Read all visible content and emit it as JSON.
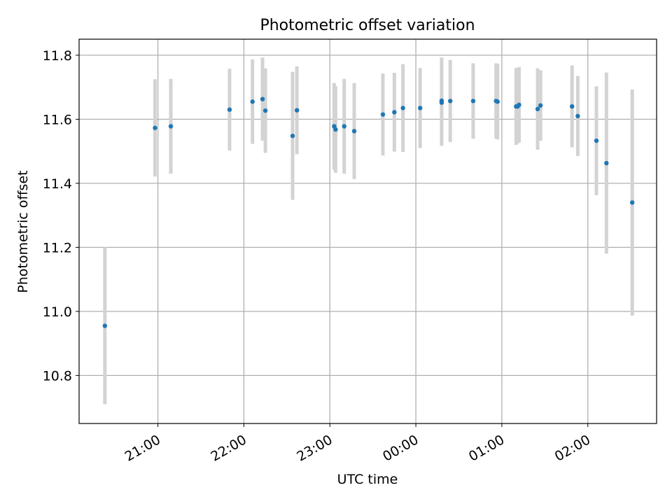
{
  "chart_data": {
    "type": "scatter",
    "title": "Photometric offset variation",
    "xlabel": "UTC time",
    "ylabel": "Photometric offset",
    "grid": true,
    "xlim": [
      "20:05",
      "02:48"
    ],
    "ylim": [
      10.65,
      11.85
    ],
    "x_ticks": [
      "21:00",
      "22:00",
      "23:00",
      "00:00",
      "01:00",
      "02:00"
    ],
    "y_ticks": [
      "10.8",
      "11.0",
      "11.2",
      "11.4",
      "11.6",
      "11.8"
    ],
    "colors": {
      "point": "#1f77b4",
      "errorbar": "#d3d3d3",
      "grid": "#b0b0b0"
    },
    "points": [
      {
        "x": "20:23",
        "y": 10.955,
        "err": 0.245
      },
      {
        "x": "20:58",
        "y": 11.573,
        "err": 0.152
      },
      {
        "x": "21:09",
        "y": 11.578,
        "err": 0.148
      },
      {
        "x": "21:50",
        "y": 11.63,
        "err": 0.128
      },
      {
        "x": "22:06",
        "y": 11.655,
        "err": 0.132
      },
      {
        "x": "22:13",
        "y": 11.663,
        "err": 0.13
      },
      {
        "x": "22:15",
        "y": 11.627,
        "err": 0.132
      },
      {
        "x": "22:34",
        "y": 11.548,
        "err": 0.2
      },
      {
        "x": "22:37",
        "y": 11.628,
        "err": 0.137
      },
      {
        "x": "23:03",
        "y": 11.578,
        "err": 0.135
      },
      {
        "x": "23:04",
        "y": 11.568,
        "err": 0.135
      },
      {
        "x": "23:10",
        "y": 11.578,
        "err": 0.148
      },
      {
        "x": "23:17",
        "y": 11.563,
        "err": 0.15
      },
      {
        "x": "23:37",
        "y": 11.615,
        "err": 0.128
      },
      {
        "x": "23:45",
        "y": 11.622,
        "err": 0.123
      },
      {
        "x": "23:51",
        "y": 11.635,
        "err": 0.137
      },
      {
        "x": "00:03",
        "y": 11.635,
        "err": 0.125
      },
      {
        "x": "00:18",
        "y": 11.652,
        "err": 0.135
      },
      {
        "x": "00:18",
        "y": 11.658,
        "err": 0.135
      },
      {
        "x": "00:24",
        "y": 11.657,
        "err": 0.128
      },
      {
        "x": "00:40",
        "y": 11.657,
        "err": 0.118
      },
      {
        "x": "00:56",
        "y": 11.657,
        "err": 0.118
      },
      {
        "x": "00:57",
        "y": 11.655,
        "err": 0.118
      },
      {
        "x": "01:10",
        "y": 11.64,
        "err": 0.12
      },
      {
        "x": "01:11",
        "y": 11.64,
        "err": 0.115
      },
      {
        "x": "01:12",
        "y": 11.645,
        "err": 0.118
      },
      {
        "x": "01:25",
        "y": 11.632,
        "err": 0.127
      },
      {
        "x": "01:27",
        "y": 11.643,
        "err": 0.11
      },
      {
        "x": "01:49",
        "y": 11.64,
        "err": 0.128
      },
      {
        "x": "01:53",
        "y": 11.61,
        "err": 0.125
      },
      {
        "x": "02:06",
        "y": 11.533,
        "err": 0.17
      },
      {
        "x": "02:13",
        "y": 11.463,
        "err": 0.283
      },
      {
        "x": "02:31",
        "y": 11.34,
        "err": 0.353
      }
    ]
  }
}
